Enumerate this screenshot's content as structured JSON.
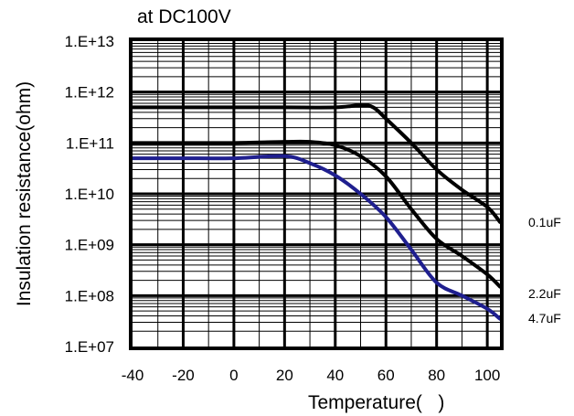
{
  "chart_data": {
    "type": "line",
    "title": "at DC100V",
    "xlabel": "Temperature(   )",
    "ylabel": "Insulation resistance(ohm)",
    "x_ticks": [
      "-40",
      "-20",
      "0",
      "20",
      "40",
      "60",
      "80",
      "100"
    ],
    "y_ticks": [
      "1.E+07",
      "1.E+08",
      "1.E+09",
      "1.E+10",
      "1.E+11",
      "1.E+12",
      "1.E+13"
    ],
    "xlim": [
      -40,
      105
    ],
    "ylim": [
      10000000.0,
      10000000000000.0
    ],
    "y_scale": "log",
    "grid": true,
    "legend": "series labels at right end of lines",
    "series": [
      {
        "name": "0.1uF",
        "color": "#000000",
        "x": [
          -40,
          -20,
          0,
          20,
          40,
          50,
          55,
          60,
          70,
          80,
          90,
          100,
          105
        ],
        "y": [
          500000000000.0,
          500000000000.0,
          500000000000.0,
          500000000000.0,
          500000000000.0,
          550000000000.0,
          500000000000.0,
          300000000000.0,
          100000000000.0,
          30000000000.0,
          12000000000.0,
          5500000000.0,
          2800000000.0
        ]
      },
      {
        "name": "2.2uF",
        "color": "#000000",
        "x": [
          -40,
          -20,
          0,
          20,
          30,
          40,
          50,
          60,
          70,
          80,
          90,
          100,
          105
        ],
        "y": [
          100000000000.0,
          100000000000.0,
          100000000000.0,
          105000000000.0,
          105000000000.0,
          90000000000.0,
          55000000000.0,
          22000000000.0,
          5000000000.0,
          1300000000.0,
          600000000.0,
          260000000.0,
          150000000.0
        ]
      },
      {
        "name": "4.7uF",
        "color": "#1f1f8f",
        "x": [
          -40,
          -20,
          0,
          20,
          30,
          40,
          50,
          60,
          70,
          80,
          90,
          100,
          105
        ],
        "y": [
          50000000000.0,
          50000000000.0,
          50000000000.0,
          55000000000.0,
          40000000000.0,
          23000000000.0,
          10000000000.0,
          3500000000.0,
          800000000.0,
          180000000.0,
          100000000.0,
          55000000.0,
          35000000.0
        ]
      }
    ]
  }
}
